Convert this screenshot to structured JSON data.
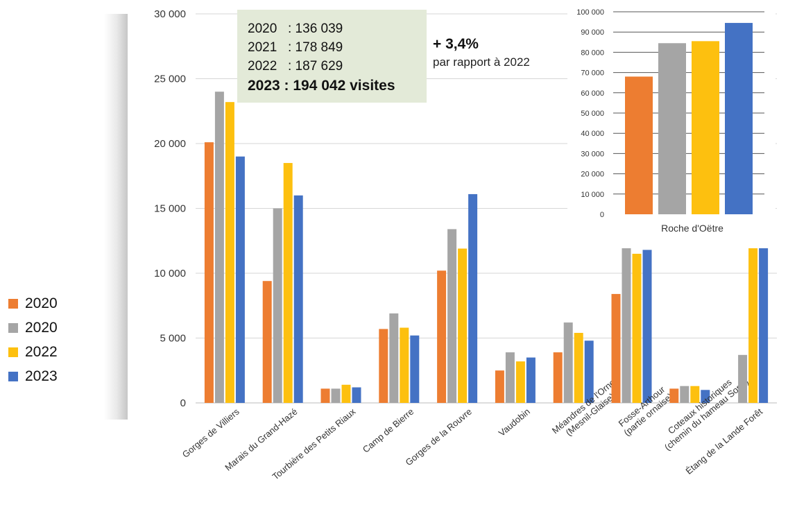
{
  "colors": {
    "2020a": "#ed7d31",
    "2020b": "#a5a5a5",
    "2022": "#fdc00f",
    "2023": "#4472c4"
  },
  "chart_data": [
    {
      "type": "bar",
      "categories": [
        "Gorges de Villiers",
        "Marais du Grand-Hazé",
        "Tourbière des Petits Riaux",
        "Camp de Bierre",
        "Gorges de la Rouvre",
        "Vaudobin",
        "Méandres de l'Orne\n(Mesnil-Glaise)",
        "Fosse-Arthour\n(partie ornaise)",
        "Coteaux historiques\n(chemin du hameau Sorel)",
        "Étang de la Lande Forêt"
      ],
      "series": [
        {
          "name": "2020",
          "values": [
            20100,
            9400,
            1100,
            5700,
            10200,
            2500,
            3900,
            8400,
            1100,
            0
          ]
        },
        {
          "name": "2020",
          "values": [
            24000,
            15000,
            1100,
            6900,
            13400,
            3900,
            6200,
            12800,
            1300,
            3700
          ]
        },
        {
          "name": "2022",
          "values": [
            23200,
            18500,
            1400,
            5800,
            11900,
            3200,
            5400,
            11500,
            1300,
            14300
          ]
        },
        {
          "name": "2023",
          "values": [
            19000,
            16000,
            1200,
            5200,
            16100,
            3500,
            4800,
            11800,
            1000,
            13200
          ]
        }
      ],
      "ylim": [
        0,
        30000
      ],
      "yticks": [
        0,
        5000,
        10000,
        15000,
        20000,
        25000,
        30000
      ],
      "ytick_labels": [
        "0",
        "5 000",
        "10 000",
        "15 000",
        "20 000",
        "25 000",
        "30 000"
      ],
      "grid": true,
      "legend": "left"
    },
    {
      "type": "bar",
      "categories": [
        "Roche d'Oëtre"
      ],
      "series": [
        {
          "name": "2020",
          "values": [
            68000
          ]
        },
        {
          "name": "2020",
          "values": [
            84500
          ]
        },
        {
          "name": "2022",
          "values": [
            85500
          ]
        },
        {
          "name": "2023",
          "values": [
            94500
          ]
        }
      ],
      "ylim": [
        0,
        100000
      ],
      "yticks": [
        0,
        10000,
        20000,
        30000,
        40000,
        50000,
        60000,
        70000,
        80000,
        90000,
        100000
      ],
      "ytick_labels": [
        "0",
        "10 000",
        "20 000",
        "30 000",
        "40 000",
        "50 000",
        "60 000",
        "70 000",
        "80 000",
        "90 000",
        "100 000"
      ],
      "grid": true
    }
  ],
  "legend": [
    {
      "label": "2020",
      "color_key": "2020a"
    },
    {
      "label": "2020",
      "color_key": "2020b"
    },
    {
      "label": "2022",
      "color_key": "2022"
    },
    {
      "label": "2023",
      "color_key": "2023"
    }
  ],
  "totals": {
    "rows": [
      {
        "year": "2020",
        "value": ": 136 039"
      },
      {
        "year": "2021",
        "value": ": 178 849"
      },
      {
        "year": "2022",
        "value": ": 187 629"
      }
    ],
    "bold": "2023 : 194 042 visites"
  },
  "growth": {
    "value": "+ 3,4%",
    "subtitle": "par rapport à 2022"
  }
}
